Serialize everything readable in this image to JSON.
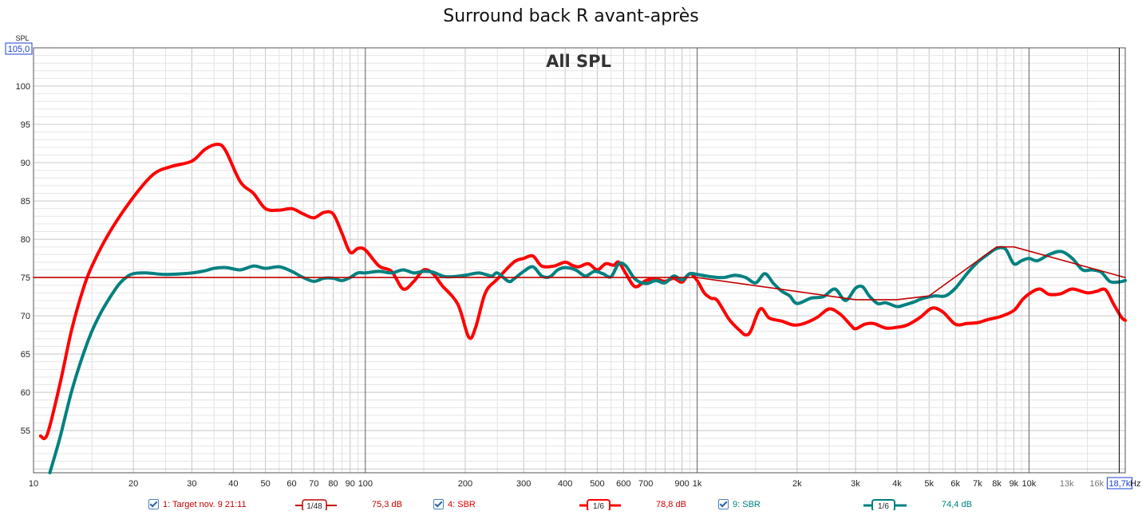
{
  "chart_data": {
    "type": "line",
    "title": "Surround back R avant-après",
    "annotation": "All SPL",
    "ylabel": "SPL",
    "xunit": "Hz",
    "xscale": "log",
    "xlim": [
      10,
      19500
    ],
    "ylim": [
      49.5,
      105
    ],
    "y_top_readout": "105,0",
    "x_cursor_readout": "18,7k",
    "y_ticks": [
      55,
      60,
      65,
      70,
      75,
      80,
      85,
      90,
      95,
      100
    ],
    "x_ticks": [
      {
        "v": 10,
        "l": "10"
      },
      {
        "v": 20,
        "l": "20"
      },
      {
        "v": 30,
        "l": "30"
      },
      {
        "v": 40,
        "l": "40"
      },
      {
        "v": 50,
        "l": "50"
      },
      {
        "v": 60,
        "l": "60"
      },
      {
        "v": 70,
        "l": "70"
      },
      {
        "v": 80,
        "l": "80"
      },
      {
        "v": 90,
        "l": "90"
      },
      {
        "v": 100,
        "l": "100"
      },
      {
        "v": 200,
        "l": "200"
      },
      {
        "v": 300,
        "l": "300"
      },
      {
        "v": 400,
        "l": "400"
      },
      {
        "v": 500,
        "l": "500"
      },
      {
        "v": 600,
        "l": "600"
      },
      {
        "v": 700,
        "l": "700"
      },
      {
        "v": 900,
        "l": "900"
      },
      {
        "v": 1000,
        "l": "1k"
      },
      {
        "v": 2000,
        "l": "2k"
      },
      {
        "v": 3000,
        "l": "3k"
      },
      {
        "v": 4000,
        "l": "4k"
      },
      {
        "v": 5000,
        "l": "5k"
      },
      {
        "v": 6000,
        "l": "6k"
      },
      {
        "v": 7000,
        "l": "7k"
      },
      {
        "v": 8000,
        "l": "8k"
      },
      {
        "v": 9000,
        "l": "9k"
      },
      {
        "v": 10000,
        "l": "10k"
      },
      {
        "v": 13000,
        "l": "13k"
      },
      {
        "v": 16000,
        "l": "16k"
      }
    ],
    "grid": true,
    "series": [
      {
        "name": "1: Target nov. 9 21:11",
        "color": "#c00000",
        "smoothing": "1/48",
        "level": "75,3 dB",
        "points": [
          [
            10,
            75
          ],
          [
            1000,
            75
          ],
          [
            3000,
            72.1
          ],
          [
            4000,
            72.1
          ],
          [
            5000,
            72.6
          ],
          [
            8000,
            79
          ],
          [
            9000,
            79
          ],
          [
            19500,
            75
          ]
        ]
      },
      {
        "name": "4: SBR",
        "color": "#ff0000",
        "smoothing": "1/6",
        "level": "78,8 dB",
        "points": [
          [
            10.5,
            54.3
          ],
          [
            11,
            54.5
          ],
          [
            12,
            61
          ],
          [
            13,
            68
          ],
          [
            14,
            73
          ],
          [
            15,
            76.5
          ],
          [
            17,
            81
          ],
          [
            20,
            85.5
          ],
          [
            23,
            88.5
          ],
          [
            26,
            89.5
          ],
          [
            30,
            90.2
          ],
          [
            33,
            91.8
          ],
          [
            36,
            92.4
          ],
          [
            38,
            91.5
          ],
          [
            42,
            87.5
          ],
          [
            46,
            86
          ],
          [
            50,
            84
          ],
          [
            55,
            83.8
          ],
          [
            60,
            84
          ],
          [
            65,
            83.3
          ],
          [
            70,
            82.8
          ],
          [
            75,
            83.5
          ],
          [
            80,
            83.3
          ],
          [
            85,
            80.8
          ],
          [
            90,
            78.3
          ],
          [
            95,
            78.8
          ],
          [
            100,
            78.6
          ],
          [
            110,
            76.5
          ],
          [
            120,
            75.8
          ],
          [
            130,
            73.5
          ],
          [
            140,
            74.5
          ],
          [
            150,
            76
          ],
          [
            160,
            75.5
          ],
          [
            170,
            74
          ],
          [
            190,
            71.5
          ],
          [
            205,
            67.2
          ],
          [
            215,
            68.5
          ],
          [
            230,
            73
          ],
          [
            250,
            74.8
          ],
          [
            280,
            77
          ],
          [
            300,
            77.5
          ],
          [
            320,
            77.8
          ],
          [
            340,
            76.5
          ],
          [
            370,
            76.5
          ],
          [
            400,
            77
          ],
          [
            420,
            76.6
          ],
          [
            440,
            76.4
          ],
          [
            470,
            76.8
          ],
          [
            500,
            76
          ],
          [
            530,
            76.8
          ],
          [
            560,
            76.6
          ],
          [
            580,
            77
          ],
          [
            610,
            75.5
          ],
          [
            650,
            73.8
          ],
          [
            700,
            74.6
          ],
          [
            750,
            74.8
          ],
          [
            800,
            74.5
          ],
          [
            850,
            74.9
          ],
          [
            900,
            74.4
          ],
          [
            950,
            75.5
          ],
          [
            1000,
            74.6
          ],
          [
            1050,
            73
          ],
          [
            1100,
            72.3
          ],
          [
            1150,
            72
          ],
          [
            1250,
            69.5
          ],
          [
            1350,
            68
          ],
          [
            1400,
            67.5
          ],
          [
            1450,
            68
          ],
          [
            1550,
            70.9
          ],
          [
            1650,
            69.7
          ],
          [
            1800,
            69.3
          ],
          [
            1950,
            68.8
          ],
          [
            2100,
            69
          ],
          [
            2300,
            69.8
          ],
          [
            2500,
            70.9
          ],
          [
            2700,
            70.2
          ],
          [
            2900,
            68.8
          ],
          [
            3000,
            68.3
          ],
          [
            3200,
            68.9
          ],
          [
            3400,
            69
          ],
          [
            3700,
            68.4
          ],
          [
            4000,
            68.5
          ],
          [
            4300,
            68.8
          ],
          [
            4700,
            69.8
          ],
          [
            5100,
            71
          ],
          [
            5500,
            70.5
          ],
          [
            6000,
            68.9
          ],
          [
            6500,
            69
          ],
          [
            7000,
            69.1
          ],
          [
            7500,
            69.5
          ],
          [
            8200,
            69.9
          ],
          [
            9000,
            70.7
          ],
          [
            9600,
            72.2
          ],
          [
            10200,
            73.1
          ],
          [
            10800,
            73.5
          ],
          [
            11500,
            72.8
          ],
          [
            12500,
            72.9
          ],
          [
            13500,
            73.5
          ],
          [
            15000,
            73
          ],
          [
            16000,
            73.2
          ],
          [
            17000,
            73.4
          ],
          [
            18000,
            71.5
          ],
          [
            19000,
            69.8
          ],
          [
            19500,
            69.4
          ]
        ]
      },
      {
        "name": "9: SBR",
        "color": "#008080",
        "smoothing": "1/6",
        "level": "74,4 dB",
        "points": [
          [
            11.2,
            49.5
          ],
          [
            12,
            54
          ],
          [
            13,
            60
          ],
          [
            14,
            64.5
          ],
          [
            15,
            68
          ],
          [
            16,
            70.5
          ],
          [
            17,
            72.4
          ],
          [
            18,
            74
          ],
          [
            19,
            75
          ],
          [
            20,
            75.5
          ],
          [
            22,
            75.6
          ],
          [
            25,
            75.4
          ],
          [
            30,
            75.6
          ],
          [
            33,
            75.9
          ],
          [
            35,
            76.2
          ],
          [
            38,
            76.3
          ],
          [
            42,
            76
          ],
          [
            46,
            76.5
          ],
          [
            50,
            76.2
          ],
          [
            55,
            76.4
          ],
          [
            60,
            75.8
          ],
          [
            65,
            75
          ],
          [
            70,
            74.5
          ],
          [
            75,
            74.9
          ],
          [
            80,
            74.9
          ],
          [
            85,
            74.6
          ],
          [
            90,
            75
          ],
          [
            95,
            75.6
          ],
          [
            100,
            75.6
          ],
          [
            110,
            75.8
          ],
          [
            120,
            75.6
          ],
          [
            130,
            76
          ],
          [
            140,
            75.6
          ],
          [
            150,
            75.8
          ],
          [
            160,
            75.7
          ],
          [
            175,
            75.1
          ],
          [
            200,
            75.3
          ],
          [
            220,
            75.6
          ],
          [
            240,
            75.2
          ],
          [
            250,
            75.6
          ],
          [
            270,
            74.5
          ],
          [
            280,
            74.8
          ],
          [
            300,
            75.8
          ],
          [
            320,
            76.4
          ],
          [
            340,
            75.2
          ],
          [
            360,
            75.1
          ],
          [
            380,
            76
          ],
          [
            400,
            76.3
          ],
          [
            430,
            76
          ],
          [
            460,
            75.2
          ],
          [
            490,
            75.8
          ],
          [
            520,
            75.5
          ],
          [
            550,
            75.1
          ],
          [
            580,
            76.8
          ],
          [
            610,
            76.5
          ],
          [
            650,
            74.8
          ],
          [
            700,
            74.2
          ],
          [
            750,
            74.6
          ],
          [
            800,
            74.3
          ],
          [
            850,
            75.2
          ],
          [
            900,
            74.7
          ],
          [
            950,
            75.5
          ],
          [
            1000,
            75.4
          ],
          [
            1100,
            75.1
          ],
          [
            1200,
            75
          ],
          [
            1300,
            75.3
          ],
          [
            1400,
            75
          ],
          [
            1500,
            74.3
          ],
          [
            1600,
            75.5
          ],
          [
            1700,
            74.2
          ],
          [
            1800,
            73.2
          ],
          [
            1900,
            72.6
          ],
          [
            2000,
            71.6
          ],
          [
            2200,
            72.3
          ],
          [
            2400,
            72.5
          ],
          [
            2600,
            73.5
          ],
          [
            2800,
            72
          ],
          [
            3000,
            73.6
          ],
          [
            3150,
            73.8
          ],
          [
            3300,
            72.6
          ],
          [
            3500,
            71.6
          ],
          [
            3700,
            71.7
          ],
          [
            4000,
            71.2
          ],
          [
            4200,
            71.4
          ],
          [
            4500,
            71.8
          ],
          [
            4800,
            72.3
          ],
          [
            5200,
            72.6
          ],
          [
            5600,
            72.6
          ],
          [
            6000,
            73.6
          ],
          [
            6500,
            75.5
          ],
          [
            7000,
            77
          ],
          [
            7500,
            78
          ],
          [
            8000,
            78.8
          ],
          [
            8500,
            78.7
          ],
          [
            9000,
            76.8
          ],
          [
            9500,
            77.2
          ],
          [
            10000,
            77.5
          ],
          [
            10600,
            77.2
          ],
          [
            11500,
            78
          ],
          [
            12500,
            78.4
          ],
          [
            13500,
            77.5
          ],
          [
            14500,
            76
          ],
          [
            15500,
            76
          ],
          [
            16500,
            75.7
          ],
          [
            17500,
            74.5
          ],
          [
            18500,
            74.4
          ],
          [
            19500,
            74.6
          ]
        ]
      }
    ],
    "legend_position": "bottom"
  },
  "legend_text": {
    "s1_name": "1: Target nov. 9 21:11",
    "s1_smooth": "1/48",
    "s1_level": "75,3 dB",
    "s2_name": "4: SBR",
    "s2_smooth": "1/6",
    "s2_level": "78,8 dB",
    "s3_name": "9: SBR",
    "s3_smooth": "1/6",
    "s3_level": "74,4 dB"
  }
}
